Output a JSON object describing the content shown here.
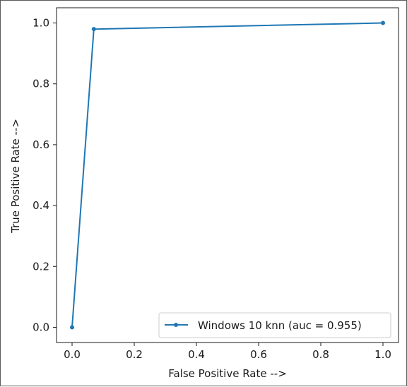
{
  "chart_data": {
    "type": "line",
    "title": "",
    "xlabel": "False Positive Rate -->",
    "ylabel": "True Positive Rate -->",
    "xlim": [
      -0.05,
      1.05
    ],
    "ylim": [
      -0.05,
      1.05
    ],
    "xticks": [
      "0.0",
      "0.2",
      "0.4",
      "0.6",
      "0.8",
      "1.0"
    ],
    "yticks": [
      "0.0",
      "0.2",
      "0.4",
      "0.6",
      "0.8",
      "1.0"
    ],
    "grid": false,
    "legend_position": "lower-right",
    "series": [
      {
        "name": "Windows 10 knn (auc = 0.955)",
        "color": "#1f77b4",
        "marker": "dot",
        "x": [
          0.0,
          0.07,
          1.0
        ],
        "y": [
          0.0,
          0.98,
          1.0
        ]
      }
    ]
  }
}
